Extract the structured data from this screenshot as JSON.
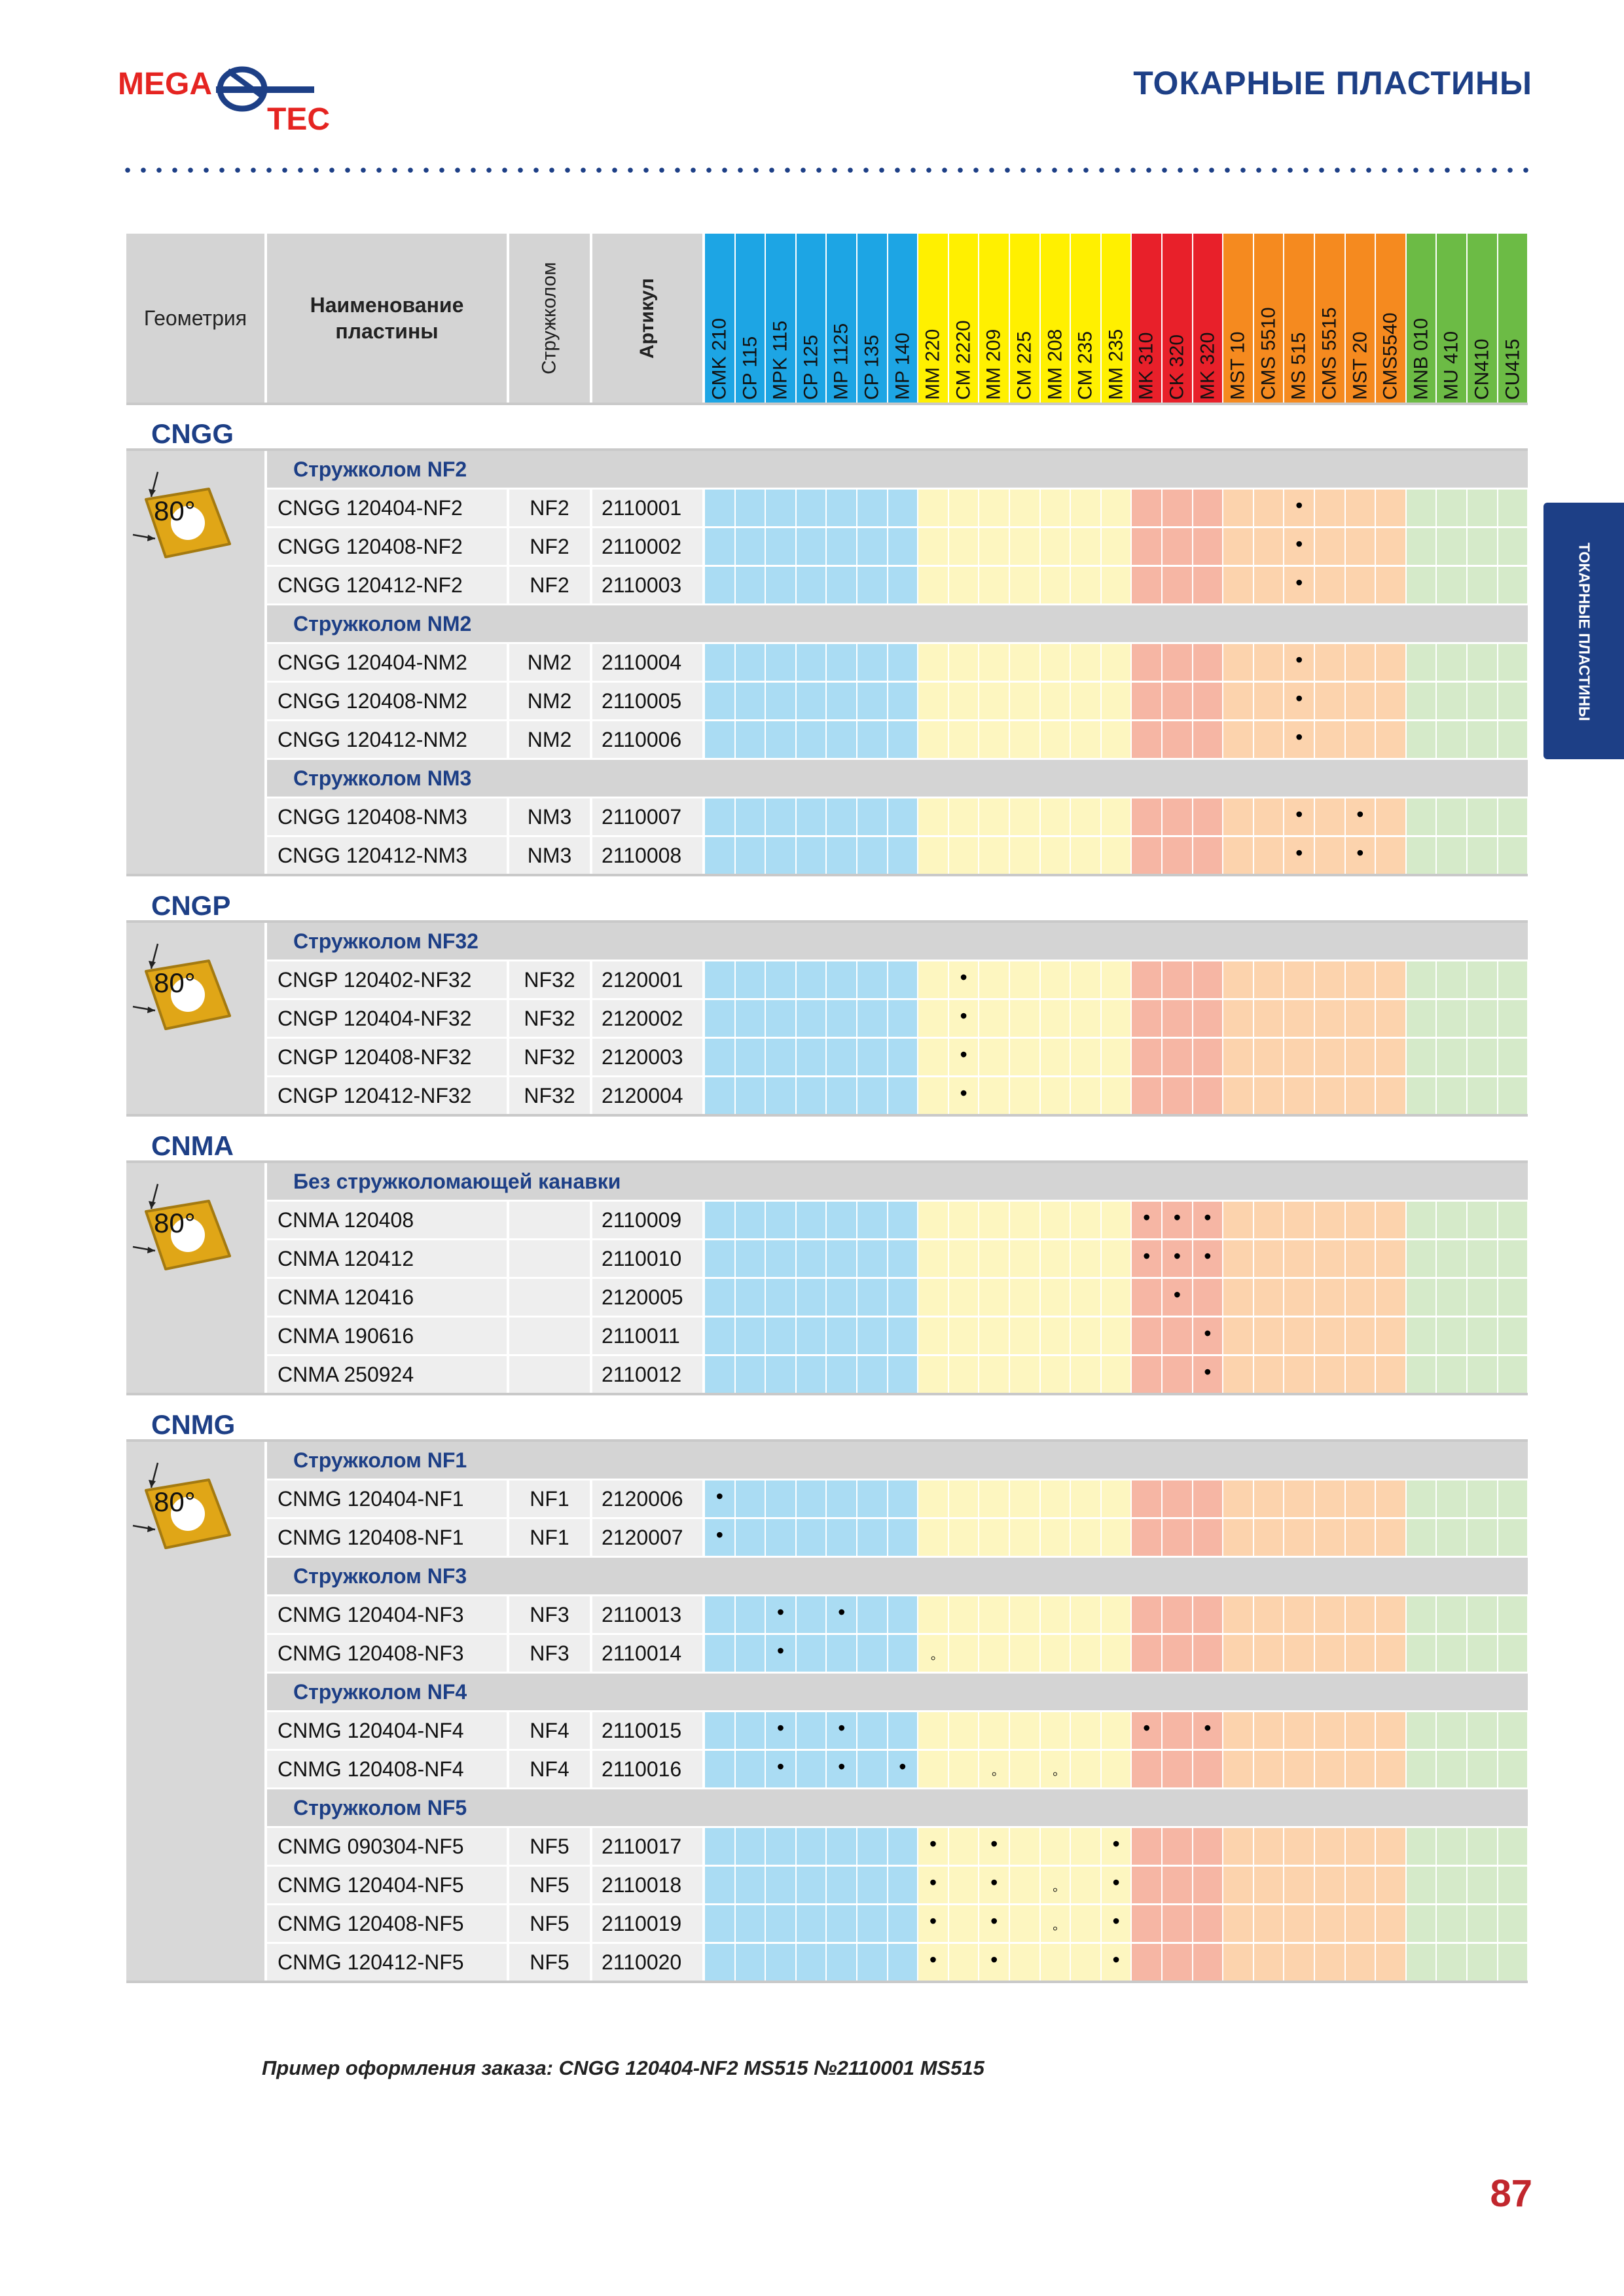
{
  "brand": {
    "word1": "MEGA",
    "word2": "TEC",
    "colors": {
      "red": "#e52421",
      "blue": "#1d3f86"
    }
  },
  "header": {
    "title": "ТОКАРНЫЕ ПЛАСТИНЫ"
  },
  "side_tab": {
    "label": "ТОКАРНЫЕ ПЛАСТИНЫ"
  },
  "table": {
    "headers": {
      "geometry": "Геометрия",
      "name": "Наименование пластины",
      "chipbreaker": "Стружколом",
      "article": "Артикул"
    },
    "grades": [
      {
        "name": "CMK 210",
        "color": "#1da5e4",
        "light": "#aadcf3"
      },
      {
        "name": "CP 115",
        "color": "#1da5e4",
        "light": "#aadcf3"
      },
      {
        "name": "MPK 115",
        "color": "#1da5e4",
        "light": "#aadcf3"
      },
      {
        "name": "CP 125",
        "color": "#1da5e4",
        "light": "#aadcf3"
      },
      {
        "name": "MP 1125",
        "color": "#1da5e4",
        "light": "#aadcf3"
      },
      {
        "name": "CP 135",
        "color": "#1da5e4",
        "light": "#aadcf3"
      },
      {
        "name": "MP 140",
        "color": "#1da5e4",
        "light": "#aadcf3"
      },
      {
        "name": "MM 220",
        "color": "#fff000",
        "light": "#fdf6c0"
      },
      {
        "name": "CM 2220",
        "color": "#fff000",
        "light": "#fdf6c0"
      },
      {
        "name": "MM 209",
        "color": "#fff000",
        "light": "#fdf6c0"
      },
      {
        "name": "CM 225",
        "color": "#fff000",
        "light": "#fdf6c0"
      },
      {
        "name": "MM 208",
        "color": "#fff000",
        "light": "#fdf6c0"
      },
      {
        "name": "CM 235",
        "color": "#fff000",
        "light": "#fdf6c0"
      },
      {
        "name": "MM 235",
        "color": "#fff000",
        "light": "#fdf6c0"
      },
      {
        "name": "MK 310",
        "color": "#e8202a",
        "light": "#f6b6a4"
      },
      {
        "name": "CK 320",
        "color": "#e8202a",
        "light": "#f6b6a4"
      },
      {
        "name": "MK 320",
        "color": "#e8202a",
        "light": "#f6b6a4"
      },
      {
        "name": "MST 10",
        "color": "#f58a1f",
        "light": "#fcd3ad"
      },
      {
        "name": "CMS 5510",
        "color": "#f58a1f",
        "light": "#fcd3ad"
      },
      {
        "name": "MS 515",
        "color": "#f58a1f",
        "light": "#fcd3ad"
      },
      {
        "name": "CMS 5515",
        "color": "#f58a1f",
        "light": "#fcd3ad"
      },
      {
        "name": "MST 20",
        "color": "#f58a1f",
        "light": "#fcd3ad"
      },
      {
        "name": "CMS5540",
        "color": "#f58a1f",
        "light": "#fcd3ad"
      },
      {
        "name": "MNB 010",
        "color": "#6cbb45",
        "light": "#d5eac9"
      },
      {
        "name": "MU 410",
        "color": "#6cbb45",
        "light": "#d5eac9"
      },
      {
        "name": "CN410",
        "color": "#6cbb45",
        "light": "#d5eac9"
      },
      {
        "name": "CU415",
        "color": "#6cbb45",
        "light": "#d5eac9"
      }
    ],
    "sections": [
      {
        "title": "CNGG",
        "icon": "insert-80-icon",
        "angle": "80°",
        "groups": [
          {
            "title": "Стружколом NF2",
            "rows": [
              {
                "name": "CNGG 120404-NF2",
                "cb": "NF2",
                "art": "2110001",
                "marks": [
                  19
                ]
              },
              {
                "name": "CNGG 120408-NF2",
                "cb": "NF2",
                "art": "2110002",
                "marks": [
                  19
                ]
              },
              {
                "name": "CNGG 120412-NF2",
                "cb": "NF2",
                "art": "2110003",
                "marks": [
                  19
                ]
              }
            ]
          },
          {
            "title": "Стружколом NM2",
            "rows": [
              {
                "name": "CNGG 120404-NM2",
                "cb": "NM2",
                "art": "2110004",
                "marks": [
                  19
                ]
              },
              {
                "name": "CNGG 120408-NM2",
                "cb": "NM2",
                "art": "2110005",
                "marks": [
                  19
                ]
              },
              {
                "name": "CNGG 120412-NM2",
                "cb": "NM2",
                "art": "2110006",
                "marks": [
                  19
                ]
              }
            ]
          },
          {
            "title": "Стружколом NM3",
            "rows": [
              {
                "name": "CNGG 120408-NM3",
                "cb": "NM3",
                "art": "2110007",
                "marks": [
                  19,
                  21
                ]
              },
              {
                "name": "CNGG 120412-NM3",
                "cb": "NM3",
                "art": "2110008",
                "marks": [
                  19,
                  21
                ]
              }
            ]
          }
        ]
      },
      {
        "title": "CNGP",
        "icon": "insert-80-icon",
        "angle": "80°",
        "groups": [
          {
            "title": "Стружколом NF32",
            "rows": [
              {
                "name": "CNGP 120402-NF32",
                "cb": "NF32",
                "art": "2120001",
                "marks": [
                  8
                ]
              },
              {
                "name": "CNGP 120404-NF32",
                "cb": "NF32",
                "art": "2120002",
                "marks": [
                  8
                ]
              },
              {
                "name": "CNGP 120408-NF32",
                "cb": "NF32",
                "art": "2120003",
                "marks": [
                  8
                ]
              },
              {
                "name": "CNGP 120412-NF32",
                "cb": "NF32",
                "art": "2120004",
                "marks": [
                  8
                ]
              }
            ]
          }
        ]
      },
      {
        "title": "CNMA",
        "icon": "insert-80-icon",
        "angle": "80°",
        "groups": [
          {
            "title": "Без стружколомающей канавки",
            "rows": [
              {
                "name": "CNMA 120408",
                "cb": "",
                "art": "2110009",
                "marks": [
                  14,
                  15,
                  16
                ]
              },
              {
                "name": "CNMA 120412",
                "cb": "",
                "art": "2110010",
                "marks": [
                  14,
                  15,
                  16
                ]
              },
              {
                "name": "CNMA 120416",
                "cb": "",
                "art": "2120005",
                "marks": [
                  15
                ]
              },
              {
                "name": "CNMA 190616",
                "cb": "",
                "art": "2110011",
                "marks": [
                  16
                ]
              },
              {
                "name": "CNMA 250924",
                "cb": "",
                "art": "2110012",
                "marks": [
                  16
                ]
              }
            ]
          }
        ]
      },
      {
        "title": "CNMG",
        "icon": "insert-80-icon",
        "angle": "80°",
        "groups": [
          {
            "title": "Стружколом NF1",
            "rows": [
              {
                "name": "CNMG 120404-NF1",
                "cb": "NF1",
                "art": "2120006",
                "marks": [
                  0
                ]
              },
              {
                "name": "CNMG 120408-NF1",
                "cb": "NF1",
                "art": "2120007",
                "marks": [
                  0
                ]
              }
            ]
          },
          {
            "title": "Стружколом NF3",
            "rows": [
              {
                "name": "CNMG 120404-NF3",
                "cb": "NF3",
                "art": "2110013",
                "marks": [
                  2,
                  4
                ]
              },
              {
                "name": "CNMG 120408-NF3",
                "cb": "NF3",
                "art": "2110014",
                "marks": [
                  2
                ],
                "opt": [
                  7
                ]
              }
            ]
          },
          {
            "title": "Стружколом  NF4",
            "rows": [
              {
                "name": "CNMG 120404-NF4",
                "cb": "NF4",
                "art": "2110015",
                "marks": [
                  2,
                  4,
                  14,
                  16
                ]
              },
              {
                "name": "CNMG 120408-NF4",
                "cb": "NF4",
                "art": "2110016",
                "marks": [
                  2,
                  4,
                  6
                ],
                "opt": [
                  9,
                  11
                ]
              }
            ]
          },
          {
            "title": "Стружколом  NF5",
            "rows": [
              {
                "name": "CNMG 090304-NF5",
                "cb": "NF5",
                "art": "2110017",
                "marks": [
                  7,
                  9,
                  13
                ]
              },
              {
                "name": "CNMG 120404-NF5",
                "cb": "NF5",
                "art": "2110018",
                "marks": [
                  7,
                  9,
                  13
                ],
                "opt": [
                  11
                ]
              },
              {
                "name": "CNMG 120408-NF5",
                "cb": "NF5",
                "art": "2110019",
                "marks": [
                  7,
                  9,
                  13
                ],
                "opt": [
                  11
                ]
              },
              {
                "name": "CNMG 120412-NF5",
                "cb": "NF5",
                "art": "2110020",
                "marks": [
                  7,
                  9,
                  13
                ]
              }
            ]
          }
        ]
      }
    ]
  },
  "symbols": {
    "main": "•",
    "optional": "◦"
  },
  "footer": {
    "order_example": "Пример оформления заказа: CNGG 120404-NF2 MS515 №2110001 MS515",
    "page_number": "87"
  }
}
